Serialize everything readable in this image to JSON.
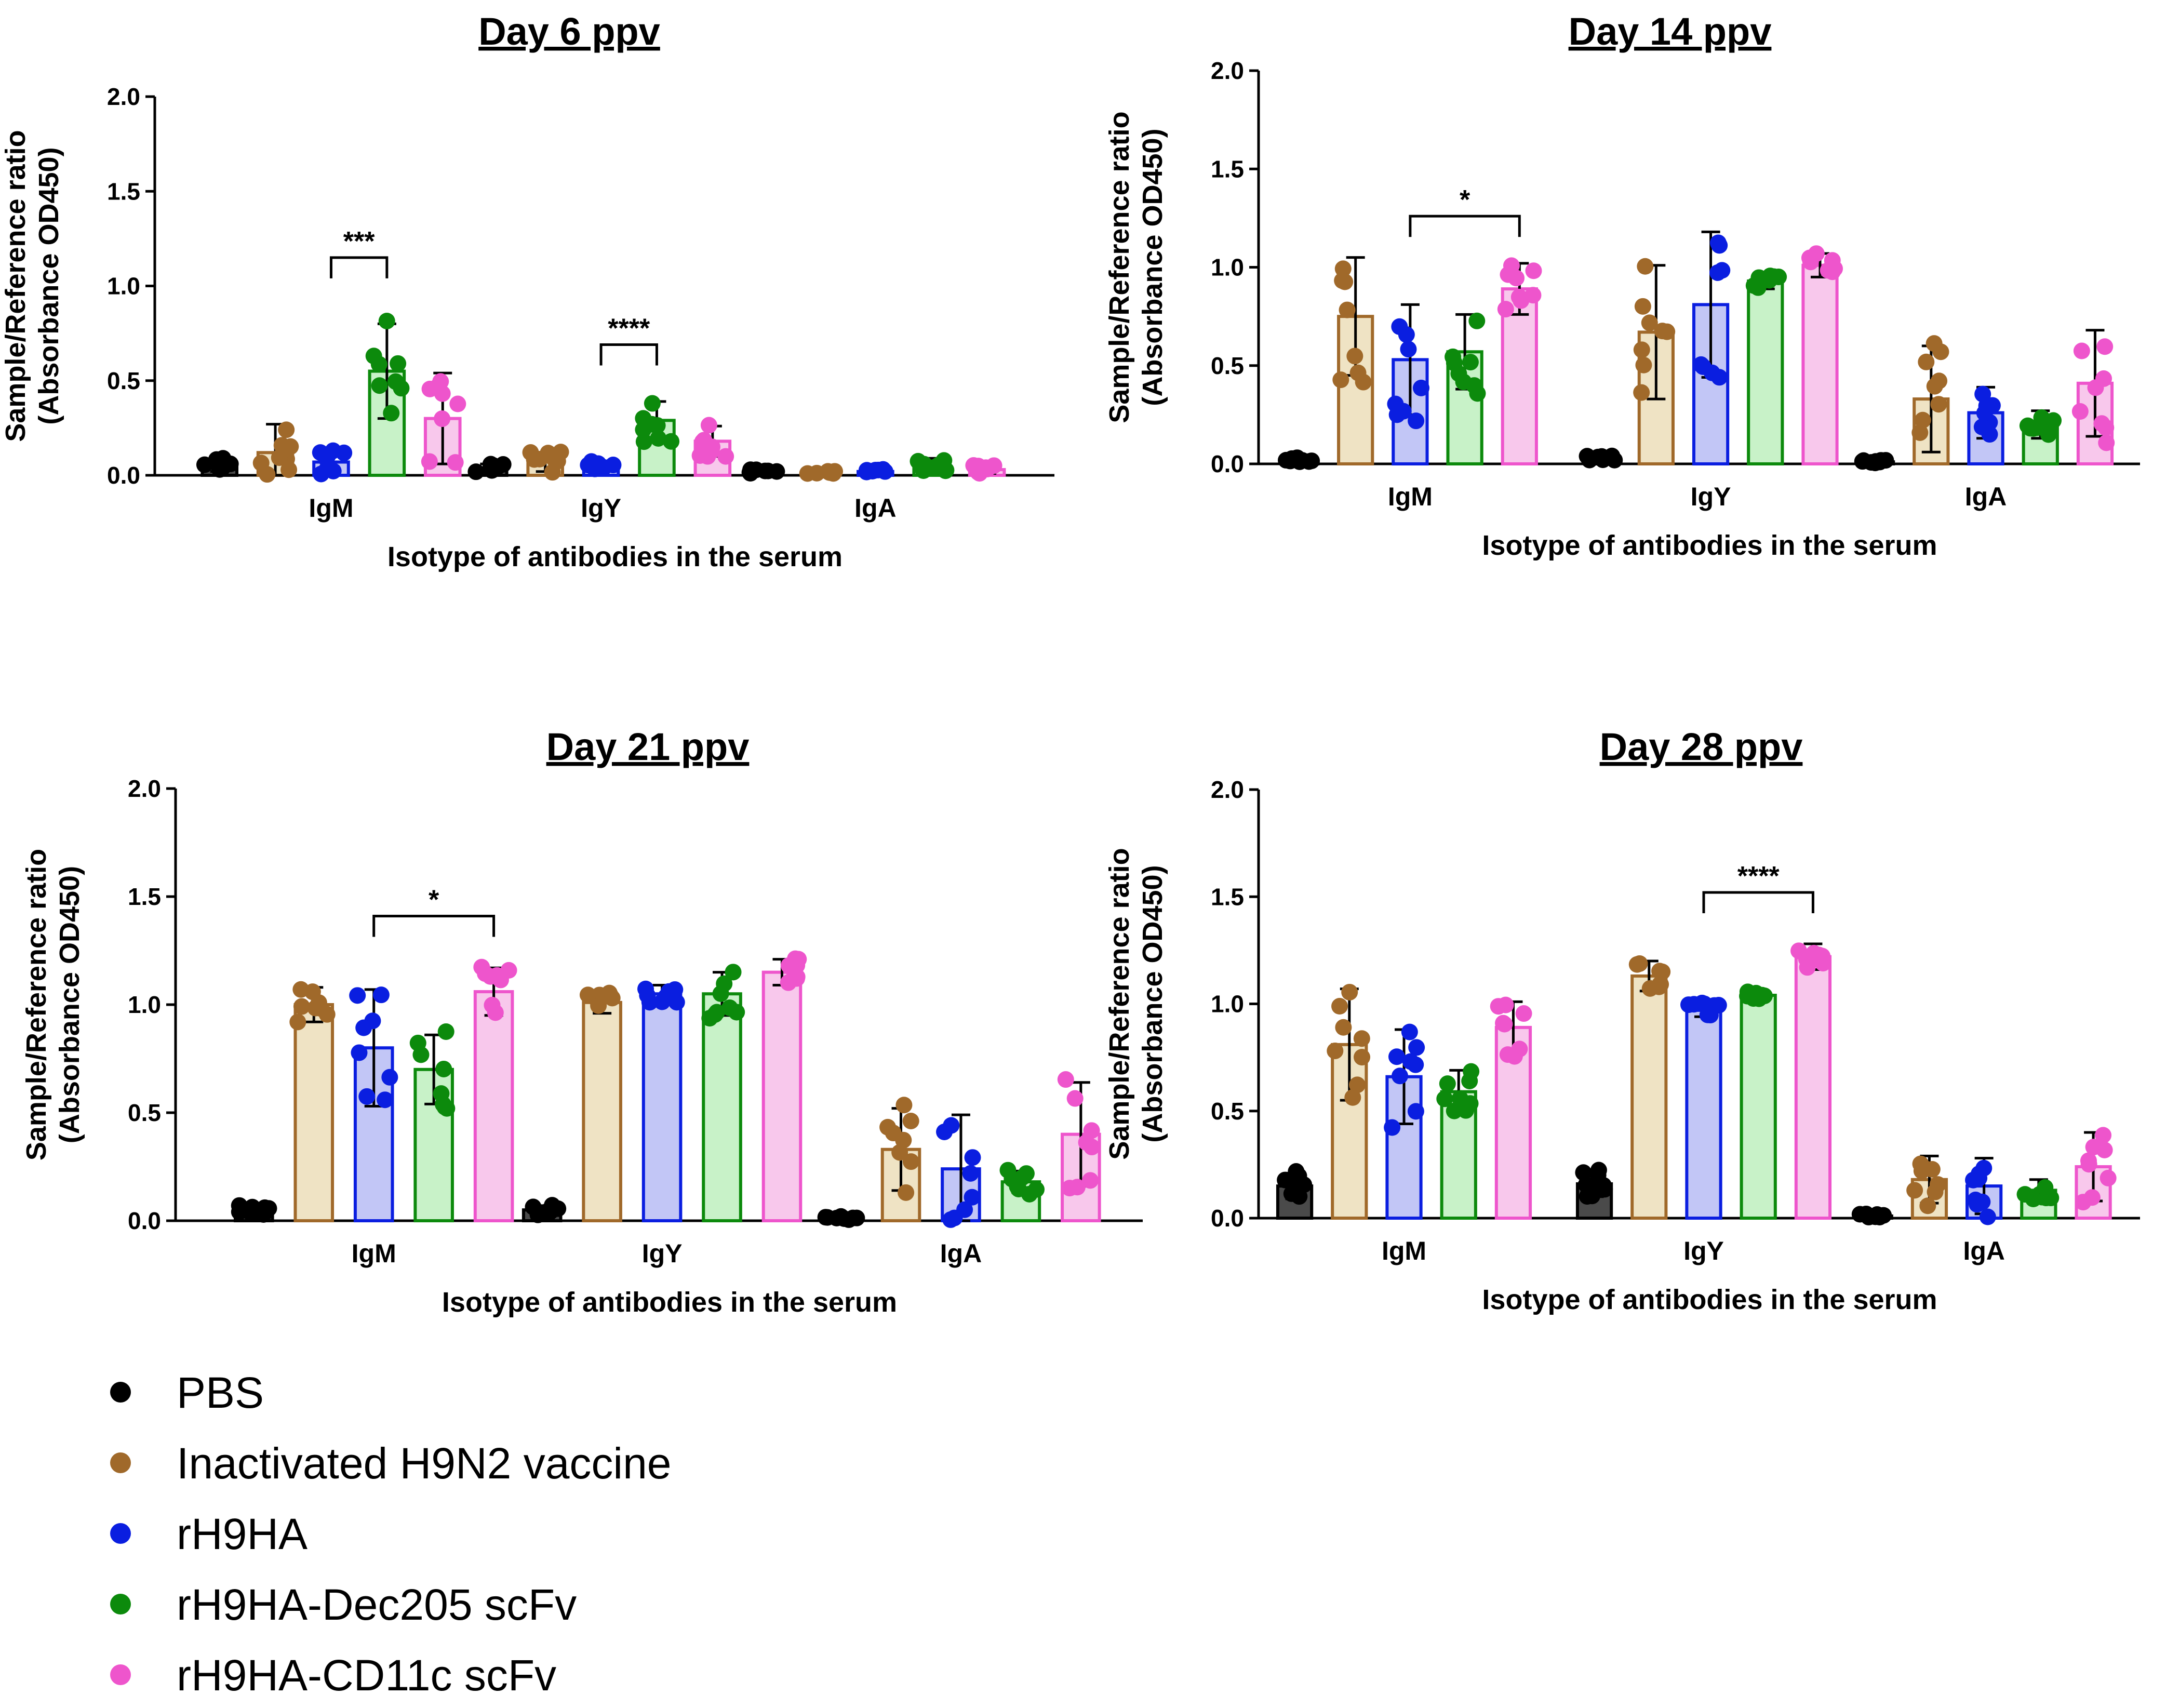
{
  "figure": {
    "groups": [
      {
        "name": "PBS",
        "color": "#000000",
        "fill": "#4a4a4a"
      },
      {
        "name": "Inactivated H9N2 vaccine",
        "color": "#a0692a",
        "fill": "#efe3c4"
      },
      {
        "name": "rH9HA",
        "color": "#0a1ee0",
        "fill": "#c2c6f6"
      },
      {
        "name": "rH9HA-Dec205 scFv",
        "color": "#0c8a0c",
        "fill": "#c8f2c8"
      },
      {
        "name": "rH9HA-CD11c scFv",
        "color": "#ee55cc",
        "fill": "#f8c8ec"
      }
    ]
  },
  "chart_data": [
    {
      "type": "bar",
      "title": "Day 6 ppv",
      "xlabel": "Isotype of antibodies in the serum",
      "ylabel": [
        "Sample/Reference ratio",
        "(Absorbance OD450)"
      ],
      "ylim": [
        0,
        2.0
      ],
      "yticks": [
        "0.0",
        "0.5",
        "1.0",
        "1.5",
        "2.0"
      ],
      "categories": [
        "IgM",
        "IgY",
        "IgA"
      ],
      "series": [
        {
          "name": "PBS",
          "values": [
            0.06,
            0.04,
            0.02
          ],
          "err": [
            0.04,
            0.02,
            0.01
          ]
        },
        {
          "name": "Inactivated H9N2 vaccine",
          "values": [
            0.12,
            0.07,
            0.02
          ],
          "err": [
            0.15,
            0.05,
            0.01
          ]
        },
        {
          "name": "rH9HA",
          "values": [
            0.07,
            0.05,
            0.02
          ],
          "err": [
            0.06,
            0.02,
            0.01
          ]
        },
        {
          "name": "rH9HA-Dec205 scFv",
          "values": [
            0.55,
            0.29,
            0.05
          ],
          "err": [
            0.25,
            0.1,
            0.04
          ]
        },
        {
          "name": "rH9HA-CD11c scFv",
          "values": [
            0.3,
            0.18,
            0.03
          ],
          "err": [
            0.24,
            0.08,
            0.02
          ]
        }
      ],
      "significance": [
        {
          "category": "IgM",
          "from": 2,
          "to": 3,
          "label": "***",
          "y": 1.15
        },
        {
          "category": "IgY",
          "from": 2,
          "to": 3,
          "label": "****",
          "y": 0.69
        }
      ]
    },
    {
      "type": "bar",
      "title": "Day 14 ppv",
      "xlabel": "Isotype of antibodies in the serum",
      "ylabel": [
        "Sample/Reference ratio",
        "(Absorbance OD450)"
      ],
      "ylim": [
        0,
        2.0
      ],
      "yticks": [
        "0.0",
        "0.5",
        "1.0",
        "1.5",
        "2.0"
      ],
      "categories": [
        "IgM",
        "IgY",
        "IgA"
      ],
      "series": [
        {
          "name": "PBS",
          "values": [
            0.02,
            0.03,
            0.01
          ],
          "err": [
            0.01,
            0.01,
            0.01
          ]
        },
        {
          "name": "Inactivated H9N2 vaccine",
          "values": [
            0.75,
            0.67,
            0.33
          ],
          "err": [
            0.3,
            0.34,
            0.27
          ]
        },
        {
          "name": "rH9HA",
          "values": [
            0.53,
            0.81,
            0.26
          ],
          "err": [
            0.28,
            0.37,
            0.13
          ]
        },
        {
          "name": "rH9HA-Dec205 scFv",
          "values": [
            0.57,
            0.93,
            0.2
          ],
          "err": [
            0.19,
            0.04,
            0.07
          ]
        },
        {
          "name": "rH9HA-CD11c scFv",
          "values": [
            0.89,
            1.01,
            0.41
          ],
          "err": [
            0.13,
            0.06,
            0.27
          ]
        }
      ],
      "significance": [
        {
          "category": "IgM",
          "from": 2,
          "to": 4,
          "label": "*",
          "y": 1.26
        }
      ]
    },
    {
      "type": "bar",
      "title": "Day 21 ppv",
      "xlabel": "Isotype of antibodies in the serum",
      "ylabel": [
        "Sample/Reference ratio",
        "(Absorbance OD450)"
      ],
      "ylim": [
        0,
        2.0
      ],
      "yticks": [
        "0.0",
        "0.5",
        "1.0",
        "1.5",
        "2.0"
      ],
      "categories": [
        "IgM",
        "IgY",
        "IgA"
      ],
      "series": [
        {
          "name": "PBS",
          "values": [
            0.05,
            0.05,
            0.01
          ],
          "err": [
            0.02,
            0.02,
            0.01
          ]
        },
        {
          "name": "Inactivated H9N2 vaccine",
          "values": [
            1.0,
            1.01,
            0.33
          ],
          "err": [
            0.08,
            0.05,
            0.19
          ]
        },
        {
          "name": "rH9HA",
          "values": [
            0.8,
            1.05,
            0.24
          ],
          "err": [
            0.27,
            0.04,
            0.25
          ]
        },
        {
          "name": "rH9HA-Dec205 scFv",
          "values": [
            0.7,
            1.05,
            0.18
          ],
          "err": [
            0.16,
            0.1,
            0.05
          ]
        },
        {
          "name": "rH9HA-CD11c scFv",
          "values": [
            1.06,
            1.15,
            0.4
          ],
          "err": [
            0.11,
            0.06,
            0.24
          ]
        }
      ],
      "significance": [
        {
          "category": "IgM",
          "from": 2,
          "to": 4,
          "label": "*",
          "y": 1.41
        }
      ]
    },
    {
      "type": "bar",
      "title": "Day 28 ppv",
      "xlabel": "Isotype of antibodies in the serum",
      "ylabel": [
        "Sample/Reference ratio",
        "(Absorbance OD450)"
      ],
      "ylim": [
        0,
        2.0
      ],
      "yticks": [
        "0.0",
        "0.5",
        "1.0",
        "1.5",
        "2.0"
      ],
      "categories": [
        "IgM",
        "IgY",
        "IgA"
      ],
      "series": [
        {
          "name": "PBS",
          "values": [
            0.15,
            0.16,
            0.01
          ],
          "err": [
            0.06,
            0.06,
            0.01
          ]
        },
        {
          "name": "Inactivated H9N2 vaccine",
          "values": [
            0.81,
            1.13,
            0.18
          ],
          "err": [
            0.26,
            0.07,
            0.11
          ]
        },
        {
          "name": "rH9HA",
          "values": [
            0.66,
            0.97,
            0.15
          ],
          "err": [
            0.22,
            0.03,
            0.13
          ]
        },
        {
          "name": "rH9HA-Dec205 scFv",
          "values": [
            0.59,
            1.04,
            0.13
          ],
          "err": [
            0.1,
            0.02,
            0.05
          ]
        },
        {
          "name": "rH9HA-CD11c scFv",
          "values": [
            0.89,
            1.22,
            0.24
          ],
          "err": [
            0.12,
            0.06,
            0.16
          ]
        }
      ],
      "significance": [
        {
          "category": "IgY",
          "from": 2,
          "to": 4,
          "label": "****",
          "y": 1.52
        }
      ]
    }
  ]
}
